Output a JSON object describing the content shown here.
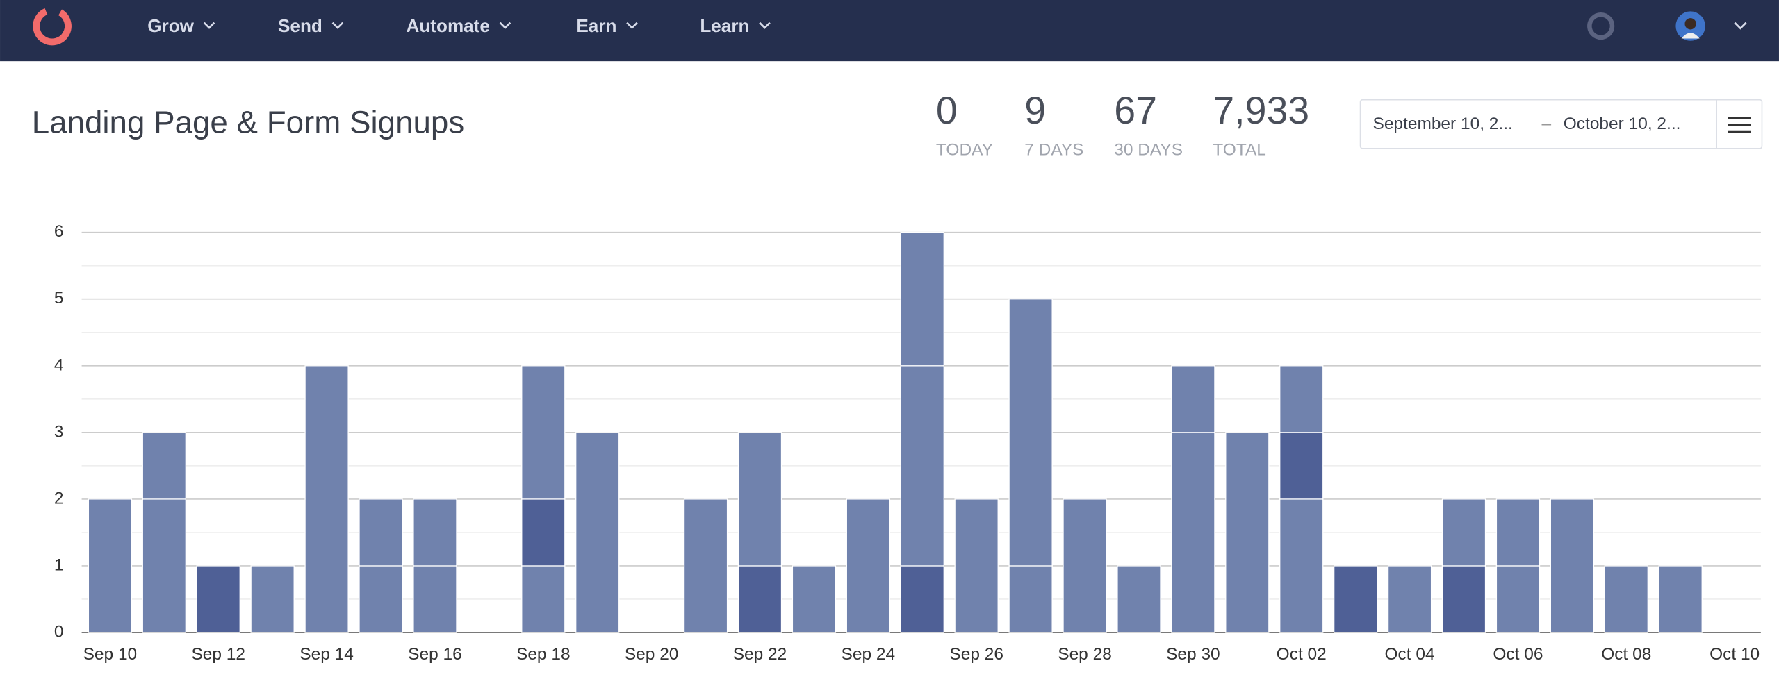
{
  "nav": {
    "items": [
      "Grow",
      "Send",
      "Automate",
      "Earn",
      "Learn"
    ]
  },
  "header": {
    "title": "Landing Page & Form Signups",
    "stats": [
      {
        "value": "0",
        "label": "TODAY"
      },
      {
        "value": "9",
        "label": "7 DAYS"
      },
      {
        "value": "67",
        "label": "30 DAYS"
      },
      {
        "value": "7,933",
        "label": "TOTAL"
      }
    ],
    "date_range": {
      "start": "September 10, 2...",
      "separator": "–",
      "end": "October 10, 2..."
    }
  },
  "chart_data": {
    "type": "stacked_bar",
    "categories": [
      "Sep 10",
      null,
      "Sep 12",
      null,
      "Sep 14",
      null,
      "Sep 16",
      null,
      "Sep 18",
      null,
      "Sep 20",
      null,
      "Sep 22",
      null,
      "Sep 24",
      null,
      "Sep 26",
      null,
      "Sep 28",
      null,
      "Sep 30",
      null,
      "Oct 02",
      null,
      "Oct 04",
      null,
      "Oct 06",
      null,
      "Oct 08",
      null,
      "Oct 10"
    ],
    "series": [
      {
        "values": [
          2,
          2,
          1,
          1,
          4,
          1,
          1,
          0,
          1,
          3,
          0,
          2,
          1,
          1,
          2,
          1,
          2,
          1,
          2,
          1,
          3,
          3,
          2,
          1,
          1,
          1,
          1,
          2,
          1,
          1,
          0
        ],
        "colors": [
          "#7082ad",
          "#7082ad",
          "#4f6096",
          "#7082ad",
          "#7082ad",
          "#7082ad",
          "#7082ad",
          "#7082ad",
          "#7082ad",
          "#7082ad",
          "#7082ad",
          "#7082ad",
          "#4f6096",
          "#7082ad",
          "#7082ad",
          "#4f6096",
          "#7082ad",
          "#7082ad",
          "#7082ad",
          "#7082ad",
          "#7082ad",
          "#7082ad",
          "#7082ad",
          "#4f6096",
          "#7082ad",
          "#4f6096",
          "#7082ad",
          "#7082ad",
          "#7082ad",
          "#7082ad",
          "#7082ad"
        ]
      },
      {
        "values": [
          0,
          1,
          0,
          0,
          0,
          1,
          1,
          0,
          1,
          0,
          0,
          0,
          2,
          0,
          0,
          3,
          0,
          4,
          0,
          0,
          1,
          0,
          1,
          0,
          0,
          1,
          1,
          0,
          0,
          0,
          0
        ],
        "colors": [
          "#7082ad",
          "#7082ad",
          "#7082ad",
          "#7082ad",
          "#7082ad",
          "#7082ad",
          "#7082ad",
          "#7082ad",
          "#4f6096",
          "#7082ad",
          "#7082ad",
          "#7082ad",
          "#7082ad",
          "#7082ad",
          "#7082ad",
          "#7082ad",
          "#7082ad",
          "#7082ad",
          "#7082ad",
          "#7082ad",
          "#7082ad",
          "#7082ad",
          "#4f6096",
          "#7082ad",
          "#7082ad",
          "#7082ad",
          "#7082ad",
          "#7082ad",
          "#7082ad",
          "#7082ad",
          "#7082ad"
        ]
      },
      {
        "values": [
          0,
          0,
          0,
          0,
          0,
          0,
          0,
          0,
          2,
          0,
          0,
          0,
          0,
          0,
          0,
          2,
          0,
          0,
          0,
          0,
          0,
          0,
          1,
          0,
          0,
          0,
          0,
          0,
          0,
          0,
          0
        ],
        "color": "#7082ad"
      }
    ],
    "ylim": [
      0,
      6
    ],
    "yticks": [
      0,
      1,
      2,
      3,
      4,
      5,
      6
    ],
    "grid": true,
    "minor_grid": true
  }
}
